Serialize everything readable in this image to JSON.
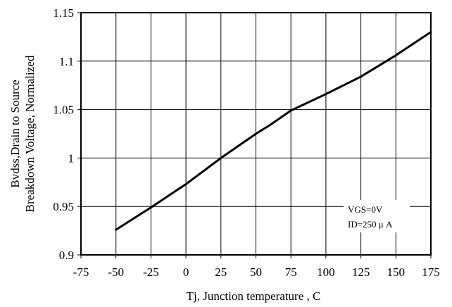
{
  "chart_data": {
    "type": "line",
    "xlabel": "Tj, Junction temperature , C",
    "ylabel_lines": [
      "Bvdss,Drain to Source",
      "Breakdown Voltage, Normalized"
    ],
    "xlim": [
      -75,
      175
    ],
    "ylim": [
      0.9,
      1.15
    ],
    "x_ticks": [
      "-75",
      "-50",
      "-25",
      "0",
      "25",
      "50",
      "75",
      "100",
      "125",
      "150",
      "175"
    ],
    "y_ticks": [
      "0.9",
      "0.95",
      "1",
      "1.05",
      "1.1",
      "1.15"
    ],
    "grid": true,
    "series": [
      {
        "color": "#000000",
        "x": [
          -50,
          -25,
          0,
          25,
          50,
          60,
          75,
          100,
          125,
          150,
          175
        ],
        "y": [
          0.926,
          0.949,
          0.973,
          1.0,
          1.025,
          1.034,
          1.049,
          1.066,
          1.084,
          1.106,
          1.13
        ]
      }
    ],
    "annotations": [
      "VGS=0V",
      "ID=250 μ A"
    ]
  }
}
